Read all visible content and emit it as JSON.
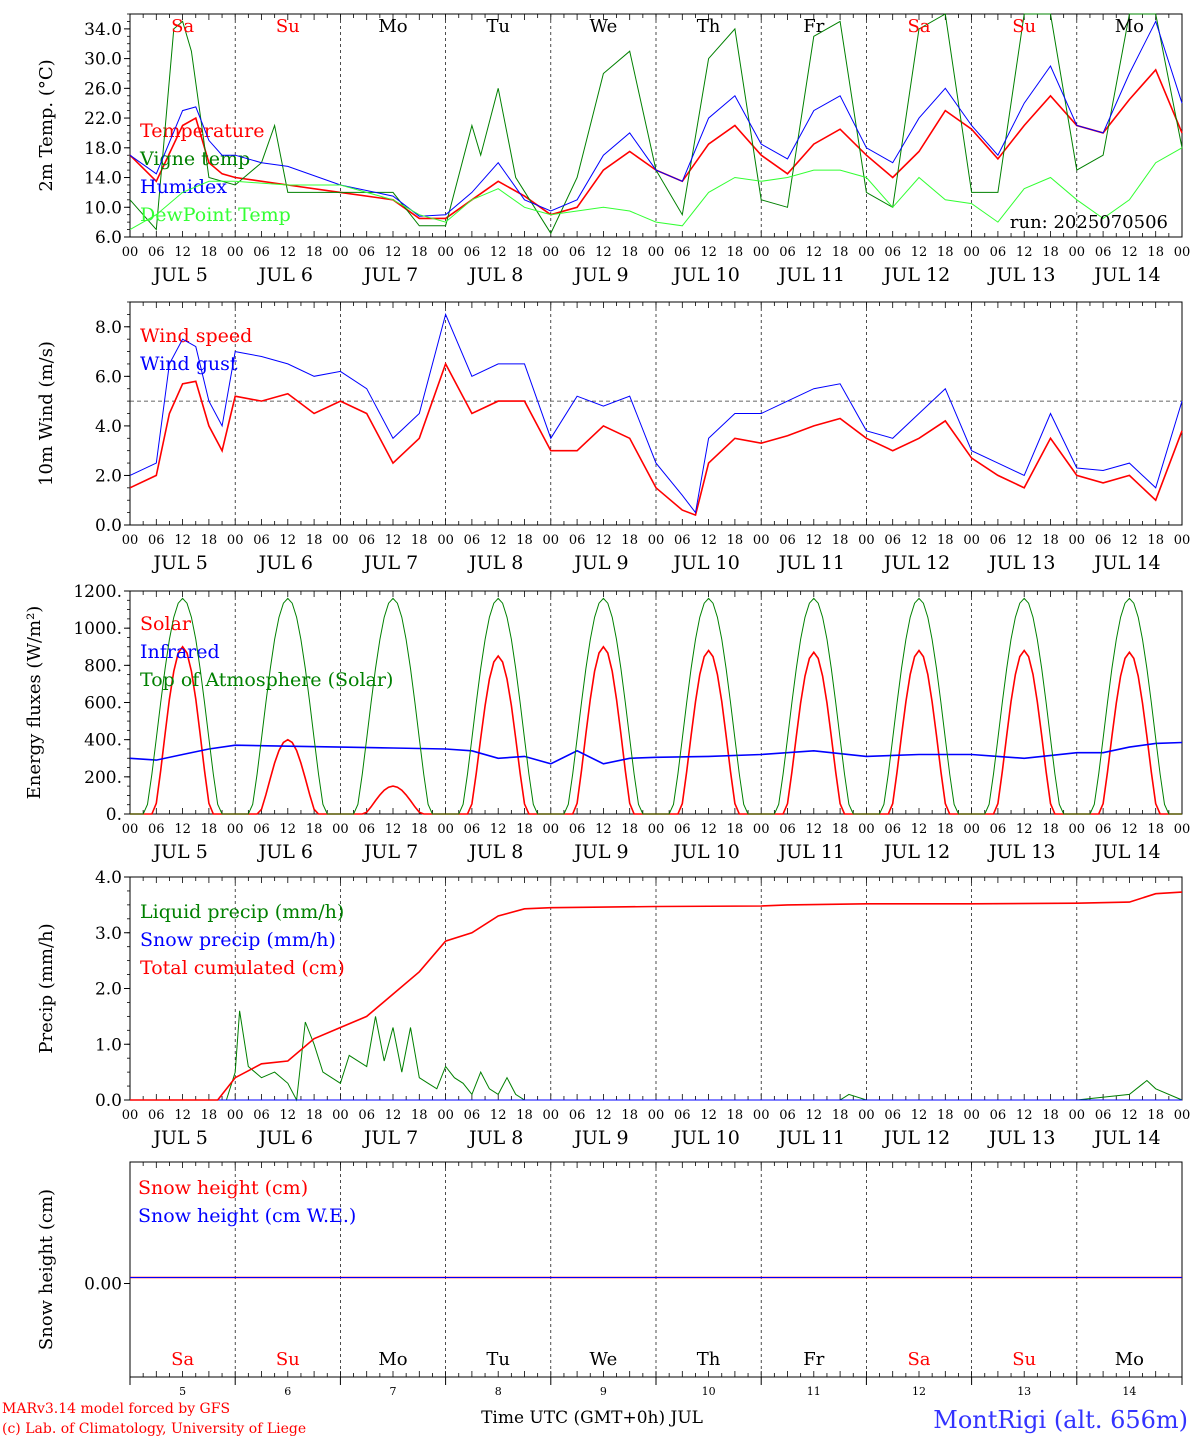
{
  "days": [
    "Sa",
    "Su",
    "Mo",
    "Tu",
    "We",
    "Th",
    "Fr",
    "Sa",
    "Su",
    "Mo"
  ],
  "weekend_flags": [
    true,
    true,
    false,
    false,
    false,
    false,
    false,
    true,
    true,
    false
  ],
  "date_labels": [
    "JUL  5",
    "JUL  6",
    "JUL  7",
    "JUL  8",
    "JUL  9",
    "JUL 10",
    "JUL 11",
    "JUL 12",
    "JUL 13",
    "JUL 14"
  ],
  "hour_ticks": [
    "00",
    "06",
    "12",
    "18"
  ],
  "day_numbers": [
    "5",
    "6",
    "7",
    "8",
    "9",
    "10",
    "11",
    "12",
    "13",
    "14"
  ],
  "run_label": "run: 2025070506",
  "footer": {
    "model_line": "MARv3.14 model forced by GFS",
    "copyright_line": "(c) Lab. of Climatology, University of Liege",
    "xlabel": "Time UTC (GMT+0h) JUL",
    "station": "MontRigi (alt. 656m)"
  },
  "colors": {
    "red": "#ff0000",
    "blue": "#0000ff",
    "green": "#008000",
    "lightgreen": "#33ff33",
    "station": "#3333ff"
  },
  "chart_data": [
    {
      "type": "line",
      "ylabel": "2m Temp. (°C)",
      "ylim": [
        6,
        36
      ],
      "yticks": [
        "6.0",
        "10.0",
        "14.0",
        "18.0",
        "22.0",
        "26.0",
        "30.0",
        "34.0"
      ],
      "x_unit": "hours since Jul 5 00 UTC",
      "series": [
        {
          "name": "Temperature",
          "color": "red",
          "x": [
            0,
            6,
            12,
            15,
            18,
            21,
            24,
            36,
            48,
            60,
            66,
            72,
            78,
            84,
            90,
            96,
            102,
            108,
            114,
            120,
            126,
            132,
            138,
            144,
            150,
            156,
            162,
            168,
            174,
            180,
            186,
            192,
            198,
            204,
            210,
            216,
            222,
            228,
            234,
            240
          ],
          "y": [
            17,
            13.5,
            21,
            22,
            16,
            14.5,
            14,
            13,
            12,
            11,
            8.5,
            8.5,
            11,
            13.5,
            11.5,
            9,
            10,
            15,
            17.5,
            15,
            13.5,
            18.5,
            21,
            17,
            14.5,
            18.5,
            20.5,
            17,
            14,
            17.5,
            23,
            20.5,
            16.5,
            21,
            25,
            21,
            20,
            24.5,
            28.5,
            20
          ]
        },
        {
          "name": "Vigne temp",
          "color": "green",
          "x": [
            0,
            6,
            10,
            12,
            14,
            18,
            24,
            30,
            33,
            36,
            48,
            60,
            66,
            72,
            78,
            80,
            84,
            88,
            96,
            102,
            108,
            114,
            120,
            126,
            132,
            138,
            144,
            150,
            156,
            162,
            168,
            174,
            180,
            186,
            192,
            198,
            204,
            210,
            216,
            222,
            228,
            234,
            240
          ],
          "y": [
            11,
            7,
            34,
            35,
            31,
            14,
            13,
            16,
            21,
            12,
            12,
            12,
            7.5,
            7.5,
            21,
            17,
            26,
            14,
            6.5,
            14,
            28,
            31,
            15,
            9,
            30,
            34,
            11,
            10,
            33,
            35,
            12,
            10,
            34,
            36,
            12,
            12,
            36,
            38,
            15,
            17,
            36,
            36,
            18
          ]
        },
        {
          "name": "Humidex",
          "color": "blue",
          "x": [
            0,
            6,
            12,
            15,
            18,
            21,
            24,
            30,
            36,
            48,
            60,
            66,
            72,
            78,
            84,
            90,
            96,
            102,
            108,
            114,
            120,
            126,
            132,
            138,
            144,
            150,
            156,
            162,
            168,
            174,
            180,
            186,
            192,
            198,
            204,
            210,
            216,
            222,
            228,
            234,
            240
          ],
          "y": [
            17,
            14.5,
            23,
            23.5,
            19,
            17,
            17,
            16,
            15.5,
            13,
            11.5,
            8.8,
            9,
            12,
            16,
            11,
            9.5,
            11,
            17,
            20,
            15,
            13.5,
            22,
            25,
            18.5,
            16.5,
            23,
            25,
            18,
            16,
            22,
            26,
            21,
            17,
            24,
            29,
            21,
            20,
            28,
            35,
            24
          ]
        },
        {
          "name": "DewPoint Temp",
          "color": "lightgreen",
          "x": [
            0,
            6,
            12,
            18,
            24,
            36,
            48,
            60,
            66,
            72,
            78,
            84,
            90,
            96,
            102,
            108,
            114,
            120,
            126,
            132,
            138,
            144,
            150,
            156,
            162,
            168,
            174,
            180,
            186,
            192,
            198,
            204,
            210,
            216,
            222,
            228,
            234,
            240
          ],
          "y": [
            7,
            9,
            12,
            13.5,
            13.5,
            13,
            13,
            11,
            9,
            8,
            11,
            12.5,
            10,
            9,
            9.5,
            10,
            9.5,
            8,
            7.5,
            12,
            14,
            13.5,
            14,
            15,
            15,
            14,
            10,
            14,
            11,
            10.5,
            8,
            12.5,
            14,
            11,
            8.5,
            11,
            16,
            18
          ]
        }
      ]
    },
    {
      "type": "line",
      "ylabel": "10m Wind (m/s)",
      "ylim": [
        0,
        9
      ],
      "yticks": [
        "0.0",
        "2.0",
        "4.0",
        "6.0",
        "8.0"
      ],
      "reference_line": 5,
      "series": [
        {
          "name": "Wind speed",
          "color": "red",
          "x": [
            0,
            6,
            9,
            12,
            15,
            18,
            21,
            24,
            30,
            36,
            42,
            48,
            54,
            60,
            66,
            72,
            78,
            84,
            90,
            96,
            102,
            108,
            114,
            120,
            126,
            129,
            132,
            138,
            144,
            150,
            156,
            162,
            168,
            174,
            180,
            186,
            192,
            198,
            204,
            210,
            216,
            222,
            228,
            234,
            240
          ],
          "y": [
            1.5,
            2,
            4.5,
            5.7,
            5.8,
            4,
            3,
            5.2,
            5,
            5.3,
            4.5,
            5,
            4.5,
            2.5,
            3.5,
            6.5,
            4.5,
            5,
            5,
            3,
            3,
            4,
            3.5,
            1.5,
            0.6,
            0.4,
            2.5,
            3.5,
            3.3,
            3.6,
            4,
            4.3,
            3.5,
            3,
            3.5,
            4.2,
            2.7,
            2,
            1.5,
            3.5,
            2,
            1.7,
            2,
            1,
            3.8
          ]
        },
        {
          "name": "Wind gust",
          "color": "blue",
          "x": [
            0,
            6,
            9,
            12,
            15,
            18,
            21,
            24,
            30,
            36,
            42,
            48,
            54,
            60,
            66,
            72,
            78,
            84,
            90,
            96,
            102,
            108,
            114,
            120,
            126,
            129,
            132,
            138,
            144,
            150,
            156,
            162,
            168,
            174,
            180,
            186,
            192,
            198,
            204,
            210,
            216,
            222,
            228,
            234,
            240
          ],
          "y": [
            2,
            2.5,
            6.5,
            7.5,
            7.2,
            5,
            4,
            7,
            6.8,
            6.5,
            6,
            6.2,
            5.5,
            3.5,
            4.5,
            8.5,
            6,
            6.5,
            6.5,
            3.5,
            5.2,
            4.8,
            5.2,
            2.5,
            1.2,
            0.5,
            3.5,
            4.5,
            4.5,
            5,
            5.5,
            5.7,
            3.8,
            3.5,
            4.5,
            5.5,
            3,
            2.5,
            2,
            4.5,
            2.3,
            2.2,
            2.5,
            1.5,
            5
          ]
        }
      ]
    },
    {
      "type": "line",
      "ylabel": "Energy fluxes (W/m²)",
      "ylim": [
        0,
        1200
      ],
      "yticks": [
        "0.",
        "200.",
        "400.",
        "600.",
        "800.",
        "1000.",
        "1200."
      ],
      "series": [
        {
          "name": "Solar",
          "color": "red",
          "peaks": [
            900,
            400,
            150,
            850,
            900,
            880,
            870,
            880,
            880,
            870
          ]
        },
        {
          "name": "Infrared",
          "color": "blue",
          "x": [
            0,
            6,
            12,
            18,
            24,
            36,
            48,
            60,
            72,
            78,
            84,
            90,
            96,
            102,
            108,
            114,
            120,
            132,
            144,
            156,
            168,
            180,
            192,
            198,
            204,
            216,
            222,
            228,
            234,
            240
          ],
          "y": [
            300,
            290,
            320,
            350,
            370,
            365,
            360,
            355,
            350,
            340,
            300,
            310,
            270,
            340,
            270,
            300,
            305,
            310,
            320,
            340,
            310,
            320,
            320,
            310,
            300,
            330,
            330,
            360,
            380,
            385
          ]
        },
        {
          "name": "Top of Atmosphere (Solar)",
          "color": "green",
          "peaks": [
            1160,
            1160,
            1160,
            1160,
            1160,
            1160,
            1160,
            1160,
            1160,
            1160
          ]
        }
      ]
    },
    {
      "type": "line",
      "ylabel": "Precip (mm/h)",
      "ylim": [
        0,
        4
      ],
      "yticks": [
        "0.0",
        "1.0",
        "2.0",
        "3.0",
        "4.0"
      ],
      "series": [
        {
          "name": "Liquid precip (mm/h)",
          "color": "green",
          "x": [
            0,
            18,
            22,
            24,
            25,
            27,
            30,
            33,
            36,
            38,
            40,
            42,
            44,
            48,
            50,
            54,
            56,
            58,
            60,
            62,
            64,
            66,
            68,
            70,
            72,
            74,
            76,
            78,
            80,
            82,
            84,
            86,
            88,
            90,
            96,
            150,
            162,
            164,
            168,
            216,
            228,
            232,
            234,
            240
          ],
          "y": [
            0,
            0,
            0,
            0.5,
            1.6,
            0.6,
            0.4,
            0.5,
            0.3,
            0,
            1.4,
            1.0,
            0.5,
            0.3,
            0.8,
            0.6,
            1.5,
            0.7,
            1.3,
            0.5,
            1.3,
            0.4,
            0.3,
            0.2,
            0.6,
            0.4,
            0.3,
            0.1,
            0.5,
            0.2,
            0.1,
            0.4,
            0.1,
            0,
            0,
            0,
            0,
            0.1,
            0,
            0,
            0.1,
            0.35,
            0.2,
            0
          ]
        },
        {
          "name": "Snow precip (mm/h)",
          "color": "blue",
          "x": [
            0,
            240
          ],
          "y": [
            0,
            0
          ]
        },
        {
          "name": "Total cumulated (cm)",
          "color": "red",
          "x": [
            0,
            20,
            24,
            30,
            36,
            42,
            48,
            54,
            60,
            66,
            72,
            78,
            84,
            90,
            96,
            120,
            144,
            150,
            168,
            192,
            216,
            228,
            234,
            240
          ],
          "y": [
            0,
            0,
            0.4,
            0.65,
            0.7,
            1.1,
            1.3,
            1.5,
            1.9,
            2.3,
            2.85,
            3.0,
            3.3,
            3.43,
            3.45,
            3.47,
            3.48,
            3.5,
            3.52,
            3.52,
            3.53,
            3.55,
            3.7,
            3.73
          ]
        }
      ]
    },
    {
      "type": "line",
      "ylabel": "Snow height (cm)",
      "yticks": [
        "0.00"
      ],
      "series": [
        {
          "name": "Snow height (cm)",
          "color": "red",
          "x": [
            0,
            240
          ],
          "y": [
            0,
            0
          ]
        },
        {
          "name": "Snow height (cm W.E.)",
          "color": "blue",
          "x": [
            0,
            240
          ],
          "y": [
            0,
            0
          ]
        }
      ]
    }
  ]
}
